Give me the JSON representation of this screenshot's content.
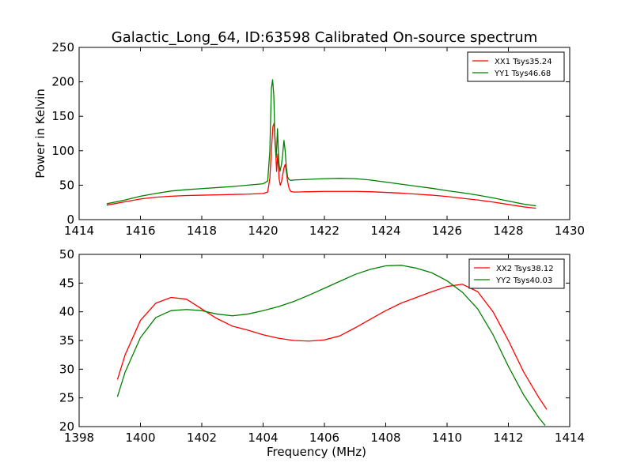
{
  "title": "Galactic_Long_64, ID:63598 Calibrated On-source spectrum",
  "chart_data": [
    {
      "type": "line",
      "title": "Galactic_Long_64, ID:63598 Calibrated On-source spectrum",
      "xlabel": "",
      "ylabel": "Power in Kelvin",
      "xlim": [
        1414,
        1430
      ],
      "ylim": [
        0,
        250
      ],
      "xticks": [
        1414,
        1416,
        1418,
        1420,
        1422,
        1424,
        1426,
        1428,
        1430
      ],
      "yticks": [
        0,
        50,
        100,
        150,
        200,
        250
      ],
      "legend_position": "top-right",
      "grid": false,
      "series": [
        {
          "name": "XX1 Tsys35.24",
          "color": "#ff0000",
          "x": [
            1414.9,
            1415.5,
            1416.0,
            1416.5,
            1417.0,
            1417.5,
            1418.0,
            1418.5,
            1419.0,
            1419.5,
            1420.0,
            1420.15,
            1420.22,
            1420.27,
            1420.32,
            1420.36,
            1420.4,
            1420.44,
            1420.48,
            1420.52,
            1420.56,
            1420.6,
            1420.64,
            1420.68,
            1420.72,
            1420.76,
            1420.8,
            1420.85,
            1420.9,
            1421.0,
            1421.5,
            1422.0,
            1422.5,
            1423.0,
            1423.5,
            1424.0,
            1424.5,
            1425.0,
            1425.5,
            1426.0,
            1426.5,
            1427.0,
            1427.5,
            1428.0,
            1428.5,
            1428.9
          ],
          "y": [
            21,
            26,
            30,
            32.5,
            34,
            35,
            35.5,
            36,
            36.5,
            37,
            38,
            40,
            60,
            100,
            135,
            140,
            110,
            70,
            95,
            60,
            50,
            55,
            65,
            75,
            80,
            70,
            55,
            45,
            41,
            40,
            40.5,
            41,
            41,
            41,
            40.5,
            39.5,
            38.5,
            37,
            35.5,
            33.5,
            31,
            28.5,
            25.5,
            22,
            18.5,
            16.5
          ]
        },
        {
          "name": "YY1 Tsys46.68",
          "color": "#008000",
          "x": [
            1414.9,
            1415.5,
            1416.0,
            1416.5,
            1417.0,
            1417.5,
            1418.0,
            1418.5,
            1419.0,
            1419.5,
            1420.0,
            1420.15,
            1420.22,
            1420.27,
            1420.31,
            1420.35,
            1420.39,
            1420.43,
            1420.47,
            1420.51,
            1420.55,
            1420.6,
            1420.64,
            1420.68,
            1420.72,
            1420.76,
            1420.8,
            1420.85,
            1420.9,
            1421.0,
            1421.5,
            1422.0,
            1422.5,
            1423.0,
            1423.5,
            1424.0,
            1424.5,
            1425.0,
            1425.5,
            1426.0,
            1426.5,
            1427.0,
            1427.5,
            1428.0,
            1428.5,
            1428.9
          ],
          "y": [
            23,
            28.5,
            34,
            38,
            41.5,
            43.5,
            45,
            46.5,
            48,
            50,
            52,
            56,
            100,
            190,
            203,
            180,
            110,
            90,
            132,
            85,
            70,
            80,
            95,
            115,
            100,
            75,
            62,
            58,
            57,
            57.5,
            58.5,
            59.5,
            60,
            59.5,
            57.5,
            54.5,
            51.5,
            48.5,
            45.5,
            42,
            39,
            35.5,
            31.5,
            27,
            22.5,
            20
          ]
        }
      ]
    },
    {
      "type": "line",
      "title": "",
      "xlabel": "Frequency (MHz)",
      "ylabel": "",
      "xlim": [
        1398,
        1414
      ],
      "ylim": [
        20,
        50
      ],
      "xticks": [
        1398,
        1400,
        1402,
        1404,
        1406,
        1408,
        1410,
        1412,
        1414
      ],
      "yticks": [
        20,
        25,
        30,
        35,
        40,
        45,
        50
      ],
      "legend_position": "top-right",
      "grid": false,
      "series": [
        {
          "name": "XX2 Tsys38.12",
          "color": "#ff0000",
          "x": [
            1399.25,
            1399.5,
            1400.0,
            1400.5,
            1401.0,
            1401.5,
            1402.0,
            1402.5,
            1403.0,
            1403.5,
            1404.0,
            1404.5,
            1405.0,
            1405.5,
            1406.0,
            1406.5,
            1407.0,
            1407.5,
            1408.0,
            1408.5,
            1409.0,
            1409.5,
            1410.0,
            1410.5,
            1411.0,
            1411.5,
            1412.0,
            1412.5,
            1413.0,
            1413.25
          ],
          "y": [
            28.2,
            32.5,
            38.5,
            41.5,
            42.5,
            42.2,
            40.5,
            38.8,
            37.5,
            36.8,
            36.0,
            35.4,
            35.0,
            34.9,
            35.1,
            35.8,
            37.2,
            38.7,
            40.2,
            41.5,
            42.5,
            43.5,
            44.4,
            44.8,
            43.5,
            40.0,
            35.0,
            29.5,
            25.0,
            23.0
          ]
        },
        {
          "name": "YY2 Tsys40.03",
          "color": "#008000",
          "x": [
            1399.25,
            1399.5,
            1400.0,
            1400.5,
            1401.0,
            1401.5,
            1402.0,
            1402.5,
            1403.0,
            1403.5,
            1404.0,
            1404.5,
            1405.0,
            1405.5,
            1406.0,
            1406.5,
            1407.0,
            1407.5,
            1408.0,
            1408.5,
            1409.0,
            1409.5,
            1410.0,
            1410.5,
            1411.0,
            1411.5,
            1412.0,
            1412.5,
            1413.0,
            1413.2
          ],
          "y": [
            25.2,
            29.5,
            35.5,
            39.0,
            40.2,
            40.4,
            40.2,
            39.6,
            39.3,
            39.6,
            40.2,
            40.9,
            41.8,
            42.9,
            44.1,
            45.3,
            46.5,
            47.4,
            48.0,
            48.1,
            47.6,
            46.8,
            45.4,
            43.4,
            40.5,
            36.0,
            30.5,
            25.5,
            21.5,
            20.2
          ]
        }
      ]
    }
  ]
}
